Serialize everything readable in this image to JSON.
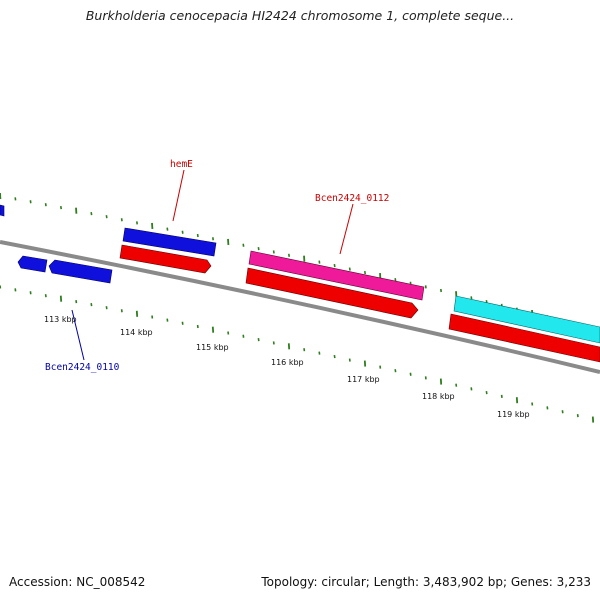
{
  "title": "Burkholderia cenocepacia HI2424 chromosome 1, complete seque...",
  "footer": {
    "accession": "Accession: NC_008542",
    "topology": "Topology: circular; Length: 3,483,902 bp; Genes: 3,233"
  },
  "colors": {
    "backbone": "#8a8a8a",
    "ticks": "#2e7d1e",
    "gene_blue": "#1010dd",
    "cds_red": "#ee0000",
    "gene_pink": "#ee1a9a",
    "gene_cyan": "#22e8ee",
    "label_red": "#cc0000",
    "label_blue": "#0000aa"
  },
  "scale_ticks": [
    "113 kbp",
    "114 kbp",
    "115 kbp",
    "116 kbp",
    "117 kbp",
    "118 kbp",
    "119 kbp"
  ],
  "gene_labels": [
    {
      "id": "hemE",
      "text": "hemE",
      "color": "red"
    },
    {
      "id": "bcen2424-0112",
      "text": "Bcen2424_0112",
      "color": "red"
    },
    {
      "id": "bcen2424-0110",
      "text": "Bcen2424_0110",
      "color": "blue"
    }
  ]
}
